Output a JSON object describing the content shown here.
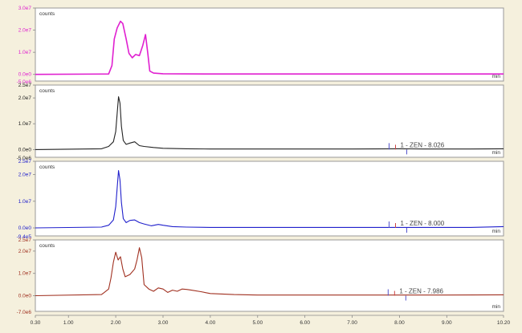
{
  "chart_data": [
    {
      "type": "line",
      "color": "#e020d0",
      "ylabel": "counts",
      "xunit": "min",
      "ylim": [
        -0.3,
        3.0
      ],
      "yticks": [
        "3.0e7",
        "2.0e7",
        "1.0e7",
        "0.0e0"
      ],
      "ytick_values": [
        3.0,
        2.0,
        1.0,
        0.0
      ],
      "bottom_tick": "-5.0e6",
      "x": [
        0.3,
        1.85,
        1.92,
        1.97,
        2.03,
        2.1,
        2.15,
        2.22,
        2.28,
        2.35,
        2.42,
        2.5,
        2.57,
        2.63,
        2.68,
        2.72,
        2.8,
        3.0,
        4.0,
        5.0,
        6.0,
        7.0,
        8.0,
        9.0,
        10.2
      ],
      "values": [
        0.0,
        0.02,
        0.4,
        1.6,
        2.1,
        2.4,
        2.3,
        1.6,
        0.95,
        0.75,
        0.9,
        0.85,
        1.3,
        1.8,
        0.9,
        0.15,
        0.06,
        0.03,
        0.02,
        0.02,
        0.02,
        0.02,
        0.02,
        0.02,
        0.02
      ],
      "annotations": []
    },
    {
      "type": "line",
      "color": "#222222",
      "ylabel": "counts",
      "xunit": "min",
      "ylim": [
        -0.3,
        2.5
      ],
      "yticks": [
        "2.5e7",
        "2.0e7",
        "1.0e7",
        "0.0e0"
      ],
      "ytick_values": [
        2.5,
        2.0,
        1.0,
        0.0
      ],
      "bottom_tick": "-5.0e6",
      "x": [
        0.3,
        1.7,
        1.85,
        1.95,
        2.0,
        2.03,
        2.06,
        2.09,
        2.12,
        2.16,
        2.22,
        2.3,
        2.4,
        2.5,
        2.6,
        2.8,
        3.0,
        3.5,
        4.0,
        5.0,
        6.0,
        7.0,
        8.0,
        8.5,
        9.0,
        9.5,
        10.2
      ],
      "values": [
        0.0,
        0.03,
        0.12,
        0.3,
        0.7,
        1.4,
        2.05,
        1.8,
        0.9,
        0.35,
        0.2,
        0.25,
        0.3,
        0.15,
        0.12,
        0.08,
        0.05,
        0.03,
        0.02,
        0.02,
        0.02,
        0.02,
        0.03,
        0.02,
        0.02,
        0.02,
        0.03
      ],
      "annotations": [
        {
          "x": 7.95,
          "label": "1 - ZEN - 8.026"
        }
      ]
    },
    {
      "type": "line",
      "color": "#2020cc",
      "ylabel": "counts",
      "xunit": "min",
      "ylim": [
        -0.3,
        2.5
      ],
      "yticks": [
        "2.5e7",
        "2.0e7",
        "1.0e7",
        "0.0e0"
      ],
      "ytick_values": [
        2.5,
        2.0,
        1.0,
        0.0
      ],
      "bottom_tick": "-9.4e5",
      "x": [
        0.3,
        1.7,
        1.85,
        1.95,
        2.0,
        2.03,
        2.06,
        2.09,
        2.12,
        2.16,
        2.22,
        2.3,
        2.4,
        2.5,
        2.6,
        2.75,
        2.9,
        3.0,
        3.2,
        3.5,
        4.0,
        5.0,
        6.0,
        7.0,
        8.0,
        8.5,
        9.0,
        9.5,
        10.2
      ],
      "values": [
        0.0,
        0.03,
        0.1,
        0.3,
        0.8,
        1.5,
        2.15,
        1.8,
        0.95,
        0.35,
        0.2,
        0.28,
        0.3,
        0.2,
        0.15,
        0.08,
        0.13,
        0.1,
        0.05,
        0.03,
        0.02,
        0.02,
        0.02,
        0.02,
        0.02,
        0.02,
        0.02,
        0.02,
        0.05
      ],
      "annotations": [
        {
          "x": 7.95,
          "label": "1 - ZEN - 8.000"
        }
      ]
    },
    {
      "type": "line",
      "color": "#a03020",
      "ylabel": "counts",
      "xunit": "min",
      "ylim": [
        -0.7,
        2.5
      ],
      "yticks": [
        "2.5e7",
        "2.0e7",
        "1.0e7",
        "0.0e0"
      ],
      "ytick_values": [
        2.5,
        2.0,
        1.0,
        0.0
      ],
      "bottom_tick": "-7.0e6",
      "x": [
        0.3,
        1.7,
        1.85,
        1.9,
        1.95,
        2.0,
        2.05,
        2.1,
        2.15,
        2.2,
        2.3,
        2.4,
        2.45,
        2.5,
        2.55,
        2.6,
        2.7,
        2.8,
        2.9,
        3.0,
        3.1,
        3.2,
        3.3,
        3.4,
        3.5,
        3.6,
        3.8,
        4.0,
        4.5,
        5.0,
        6.0,
        7.0,
        8.0,
        9.0,
        10.2
      ],
      "values": [
        0.0,
        0.05,
        0.3,
        0.8,
        1.5,
        1.95,
        1.6,
        1.75,
        1.2,
        0.85,
        0.95,
        1.2,
        1.6,
        2.15,
        1.7,
        0.5,
        0.3,
        0.2,
        0.35,
        0.3,
        0.15,
        0.25,
        0.2,
        0.3,
        0.28,
        0.25,
        0.18,
        0.1,
        0.05,
        0.03,
        0.03,
        0.03,
        0.03,
        0.03,
        0.04
      ],
      "annotations": [
        {
          "x": 7.93,
          "label": "1 - ZEN - 7.986"
        }
      ]
    }
  ],
  "x_axis": {
    "min": 0.3,
    "max": 10.2,
    "ticks": [
      0.3,
      1.0,
      2.0,
      3.0,
      4.0,
      5.0,
      6.0,
      7.0,
      8.0,
      9.0,
      10.2
    ],
    "tick_labels": [
      "0.30",
      "1.00",
      "2.00",
      "3.00",
      "4.00",
      "5.00",
      "6.00",
      "7.00",
      "8.00",
      "9.00",
      "10.20"
    ]
  }
}
